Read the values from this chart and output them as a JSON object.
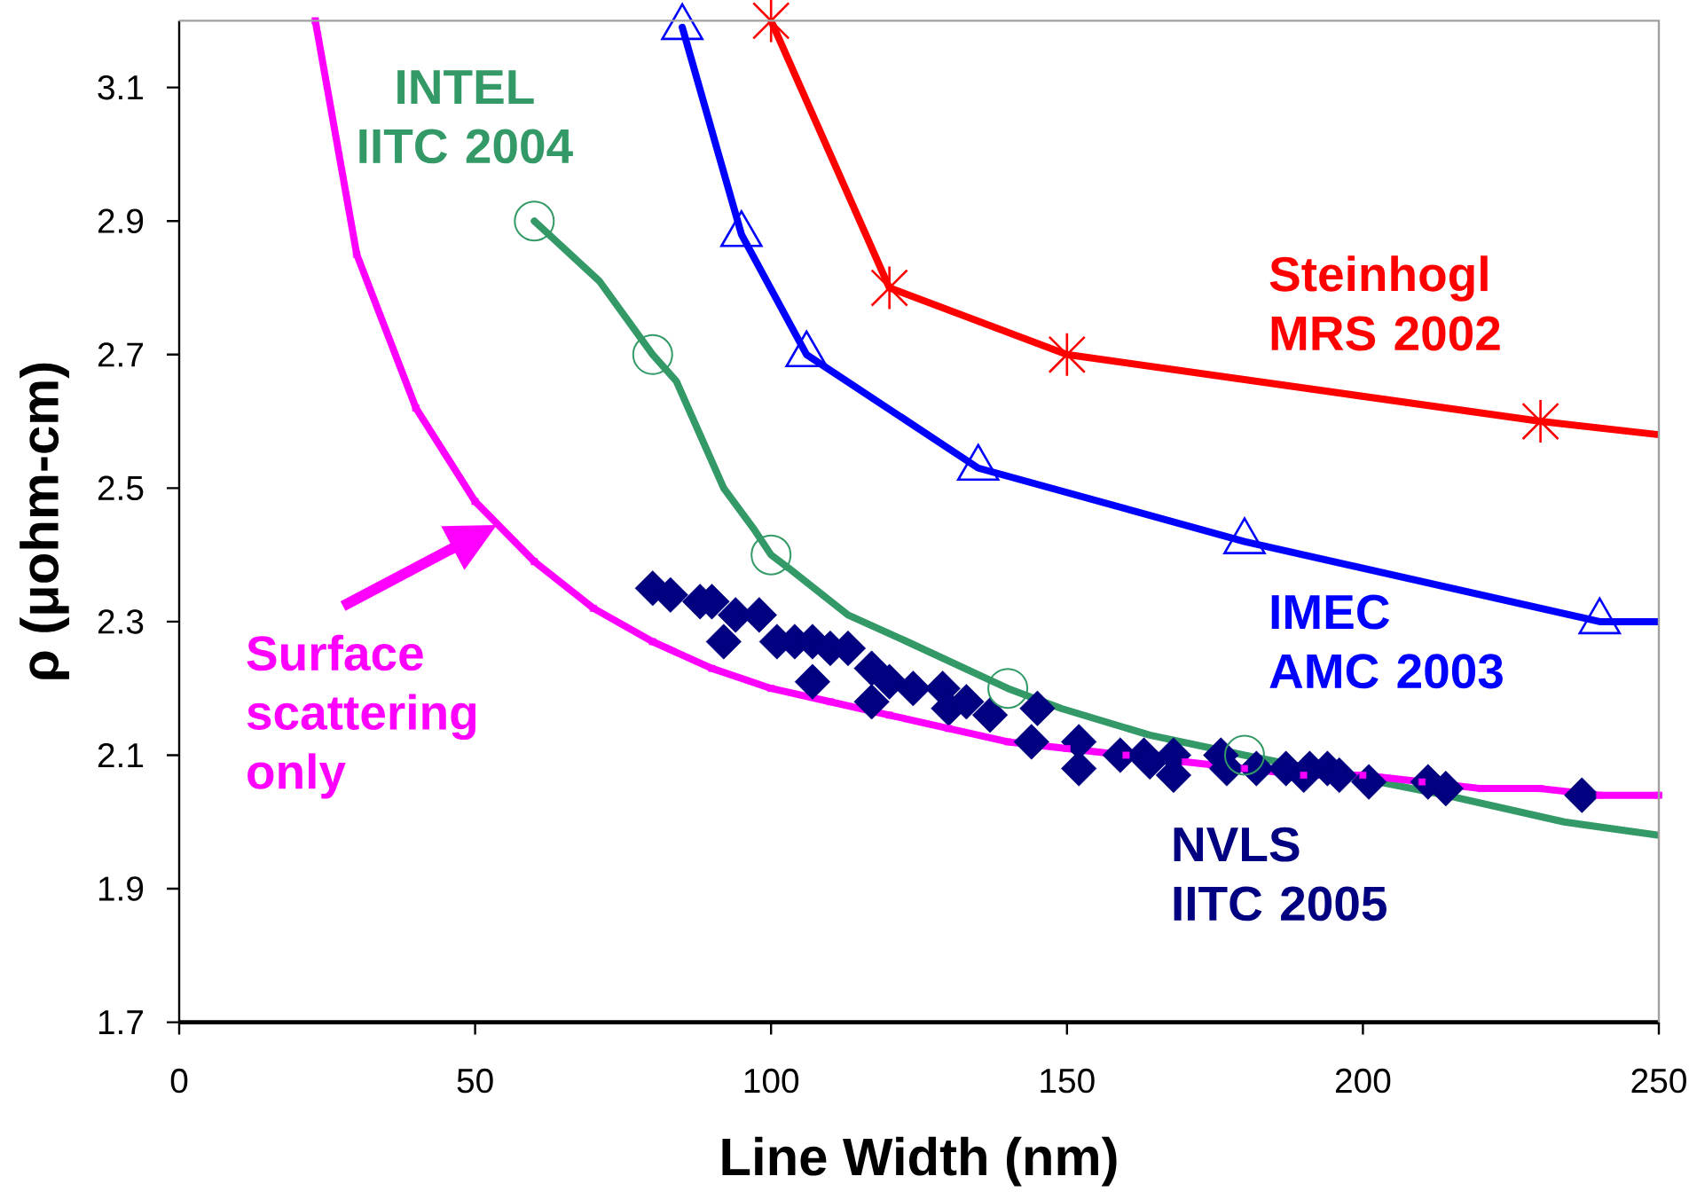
{
  "chart_data": {
    "type": "line",
    "xlabel": "Line Width (nm)",
    "ylabel": "ρ (μohm-cm)",
    "xlim": [
      0,
      250
    ],
    "ylim": [
      1.7,
      3.2
    ],
    "xticks": [
      0,
      50,
      100,
      150,
      200,
      250
    ],
    "yticks": [
      1.7,
      1.9,
      2.1,
      2.3,
      2.5,
      2.7,
      2.9,
      3.1
    ],
    "series": [
      {
        "name": "NVLS IITC 2005",
        "type": "scatter",
        "marker": "diamond",
        "color": "#000080",
        "x": [
          80,
          83,
          88,
          90,
          92,
          94,
          98,
          101,
          104,
          107,
          107,
          110,
          113,
          117,
          117,
          120,
          124,
          129,
          130,
          133,
          137,
          144,
          145,
          152,
          152,
          159,
          163,
          164,
          168,
          168,
          176,
          177,
          182,
          187,
          190,
          191,
          194,
          196,
          201,
          211,
          214,
          237
        ],
        "values": [
          2.35,
          2.34,
          2.33,
          2.33,
          2.27,
          2.31,
          2.31,
          2.27,
          2.27,
          2.27,
          2.21,
          2.26,
          2.26,
          2.23,
          2.18,
          2.21,
          2.2,
          2.2,
          2.17,
          2.18,
          2.16,
          2.12,
          2.17,
          2.08,
          2.12,
          2.1,
          2.1,
          2.09,
          2.1,
          2.07,
          2.1,
          2.08,
          2.08,
          2.08,
          2.07,
          2.08,
          2.08,
          2.07,
          2.06,
          2.06,
          2.05,
          2.04
        ]
      },
      {
        "color": "#0000ff",
        "x": [
          85,
          95,
          106,
          135,
          180,
          240,
          250
        ],
        "values": [
          3.19,
          2.88,
          2.7,
          2.53,
          2.42,
          2.3,
          2.3
        ]
      },
      {
        "name": "IMEC AMC 2003",
        "type": "scatter",
        "marker": "triangle",
        "color": "#0000ff",
        "x": [
          85,
          95,
          106,
          135,
          180,
          240
        ],
        "values": [
          3.19,
          2.88,
          2.7,
          2.53,
          2.42,
          2.3
        ]
      },
      {
        "color": "#ff0000",
        "x": [
          100,
          120,
          150,
          230,
          250
        ],
        "values": [
          3.2,
          2.8,
          2.7,
          2.6,
          2.58
        ]
      },
      {
        "name": "Steinhogl MRS 2002",
        "type": "scatter",
        "marker": "cross",
        "color": "#ff0000",
        "x": [
          100,
          120,
          150,
          230
        ],
        "values": [
          3.2,
          2.8,
          2.7,
          2.6
        ]
      },
      {
        "color": "#339966",
        "x": [
          60,
          71,
          80,
          84,
          88,
          92,
          97,
          100,
          103,
          113,
          123,
          140,
          149,
          164,
          180,
          214,
          234,
          250
        ],
        "values": [
          2.9,
          2.81,
          2.7,
          2.66,
          2.58,
          2.5,
          2.44,
          2.4,
          2.38,
          2.31,
          2.27,
          2.2,
          2.17,
          2.13,
          2.1,
          2.04,
          2.0,
          1.98
        ]
      },
      {
        "name": "INTEL IITC 2004",
        "type": "scatter",
        "marker": "circle",
        "color": "#339966",
        "x": [
          60,
          80,
          100,
          140,
          180
        ],
        "values": [
          2.9,
          2.7,
          2.4,
          2.2,
          2.1
        ]
      },
      {
        "name": "Surface scattering only",
        "marker": "square",
        "color": "#ff00ff",
        "x": [
          23,
          30,
          40,
          50,
          60,
          70,
          80,
          90,
          100,
          110,
          120,
          130,
          140,
          150,
          160,
          170,
          180,
          190,
          200,
          210,
          220,
          230,
          240,
          250
        ],
        "values": [
          3.2,
          2.85,
          2.62,
          2.48,
          2.39,
          2.32,
          2.27,
          2.23,
          2.2,
          2.18,
          2.16,
          2.14,
          2.12,
          2.11,
          2.1,
          2.09,
          2.08,
          2.07,
          2.07,
          2.06,
          2.05,
          2.05,
          2.04,
          2.04
        ]
      }
    ]
  }
}
